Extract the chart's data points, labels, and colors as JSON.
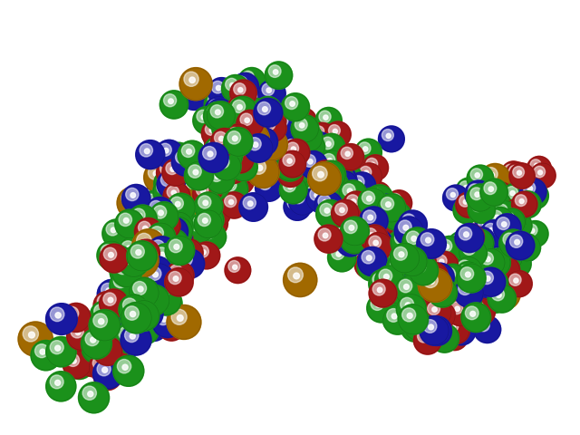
{
  "background_color": "#ffffff",
  "atom_colors": {
    "C": [
      34,
      180,
      34
    ],
    "N": [
      30,
      30,
      200
    ],
    "O": [
      200,
      30,
      30
    ],
    "P": [
      200,
      130,
      0
    ]
  },
  "atom_radii": {
    "C": 1.0,
    "N": 1.0,
    "O": 0.95,
    "P": 1.15
  },
  "figsize": [
    6.4,
    4.8
  ],
  "dpi": 100,
  "seed": 17
}
